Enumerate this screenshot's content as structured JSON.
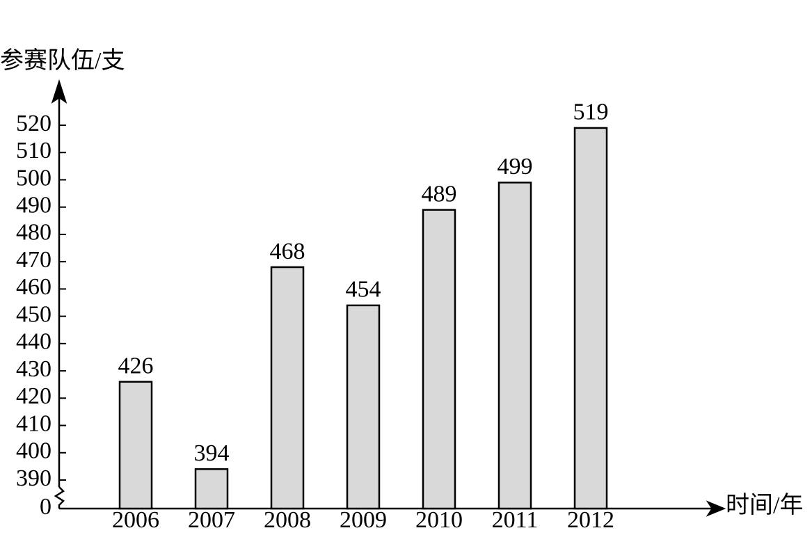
{
  "chart_data": {
    "type": "bar",
    "y_label": "参赛队伍/支",
    "x_label": "时间/年",
    "categories": [
      "2006",
      "2007",
      "2008",
      "2009",
      "2010",
      "2011",
      "2012"
    ],
    "values": [
      426,
      394,
      468,
      454,
      489,
      499,
      519
    ],
    "color": "#d9d9d9",
    "ylim": [
      0,
      520
    ],
    "yticks": [
      0,
      390,
      400,
      410,
      420,
      430,
      440,
      450,
      460,
      470,
      480,
      490,
      500,
      510,
      520
    ],
    "axis_break": true
  }
}
